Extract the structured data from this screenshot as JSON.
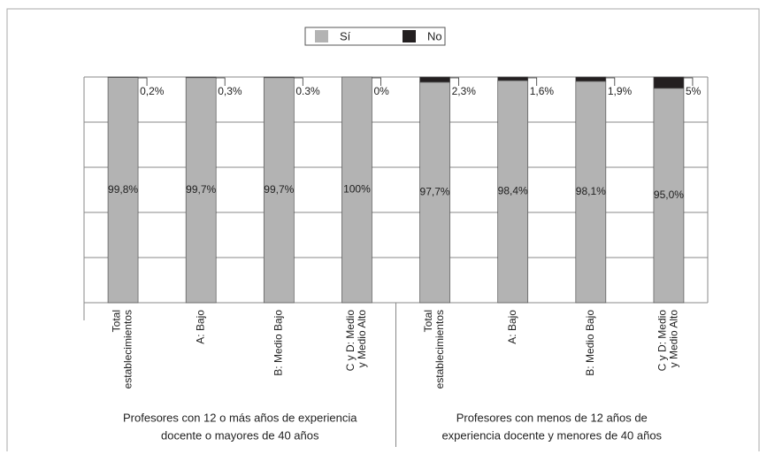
{
  "chart_data": {
    "type": "stacked_bar",
    "categories": [
      "Total\nestablecimientos",
      "A: Bajo",
      "B: Medio Bajo",
      "C y D: Medio\ny Medio Alto",
      "Total\nestablecimientos",
      "A: Bajo",
      "B: Medio Bajo",
      "C y D: Medio\ny Medio Alto"
    ],
    "groups": [
      [
        "Profesores con 12 o más años de experiencia",
        "docente o mayores de 40 años"
      ],
      [
        "Profesores con menos de 12 años de",
        "experiencia docente y menores de 40 años"
      ]
    ],
    "series": [
      {
        "name": "Sí",
        "color": "#b3b3b3",
        "values": [
          99.8,
          99.7,
          99.7,
          100,
          97.7,
          98.4,
          98.1,
          95.0
        ],
        "value_labels": [
          "99,8%",
          "99,7%",
          "99,7%",
          "100%",
          "97,7%",
          "98,4%",
          "98,1%",
          "95,0%"
        ]
      },
      {
        "name": "No",
        "color": "#231f20",
        "values": [
          0.2,
          0.3,
          0.3,
          0,
          2.3,
          1.6,
          1.9,
          5
        ],
        "value_labels": [
          "0,2%",
          "0,3%",
          "0.3%",
          "0%",
          "2,3%",
          "1,6%",
          "1,9%",
          "5%"
        ]
      }
    ],
    "ylim": [
      0,
      100
    ],
    "yticks": [
      0,
      20,
      40,
      60,
      80,
      100
    ],
    "grid": true,
    "legend": "top"
  }
}
